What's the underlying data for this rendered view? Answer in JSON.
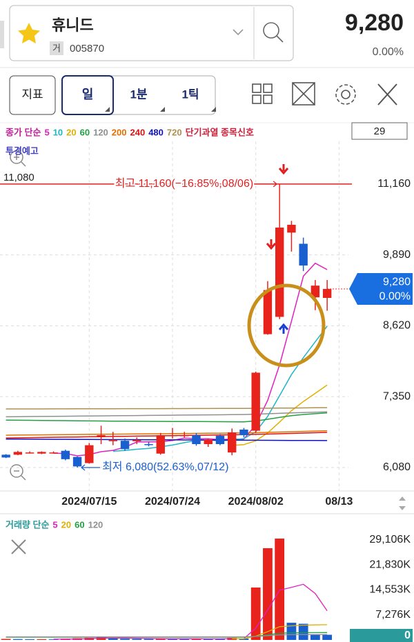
{
  "header": {
    "name": "휴니드",
    "market": "거",
    "code": "005870",
    "price": "9,280",
    "change": "0.00%"
  },
  "toolbar": {
    "buttons": [
      "지표",
      "일",
      "1분",
      "1틱"
    ],
    "count": "29"
  },
  "chart_data": [
    {
      "type": "candlestick",
      "legend_prefix": "종가 단순",
      "signals": [
        "단기과열 종목신호",
        "투경예고"
      ],
      "corner_label": "11,080",
      "categories": [
        null,
        null,
        null,
        null,
        null,
        null,
        null,
        "2024/07/15",
        null,
        null,
        null,
        null,
        null,
        null,
        "2024/07/24",
        null,
        null,
        null,
        null,
        null,
        null,
        "2024/08/02",
        null,
        null,
        null,
        null,
        null,
        null,
        "08/13"
      ],
      "open": [
        6310,
        6310,
        6350,
        6330,
        6350,
        6380,
        6270,
        6160,
        6650,
        6560,
        6560,
        6570,
        6500,
        6330,
        6660,
        6660,
        6660,
        6500,
        6650,
        6350,
        6760,
        6740,
        8470,
        8780,
        10290,
        10090,
        9130,
        9120,
        null
      ],
      "high": [
        6320,
        6380,
        6370,
        6370,
        6370,
        6400,
        6280,
        6520,
        6830,
        6720,
        6600,
        6620,
        6540,
        6700,
        6790,
        6720,
        6700,
        6600,
        6680,
        6780,
        6790,
        7800,
        9420,
        11160,
        10500,
        10200,
        9440,
        9440,
        null
      ],
      "low": [
        6250,
        6300,
        6330,
        6320,
        6330,
        6210,
        6080,
        6150,
        6500,
        6480,
        6380,
        6500,
        6460,
        6310,
        6600,
        6620,
        6470,
        6450,
        6480,
        6300,
        6620,
        6700,
        8460,
        8740,
        9950,
        9600,
        8900,
        8890,
        null
      ],
      "close": [
        6260,
        6360,
        6350,
        6360,
        6350,
        6230,
        6100,
        6480,
        6660,
        6570,
        6410,
        6570,
        6490,
        6660,
        6660,
        6660,
        6500,
        6580,
        6500,
        6710,
        6660,
        7780,
        9260,
        10380,
        10430,
        9700,
        9340,
        9280,
        null
      ],
      "up_color": "#e8231b",
      "down_color": "#1a5fd0",
      "series": [
        {
          "name": "5",
          "color": "#e020c0",
          "values": [
            null,
            null,
            null,
            null,
            6336,
            6332,
            6290,
            6314,
            6364,
            6388,
            6444,
            6538,
            6540,
            6540,
            6566,
            6608,
            6594,
            6596,
            6580,
            6590,
            6590,
            6846,
            7282,
            7920,
            8702,
            9510,
            9742,
            9626,
            null
          ]
        },
        {
          "name": "10",
          "color": "#1fb5c8",
          "values": [
            null,
            null,
            null,
            null,
            null,
            null,
            null,
            null,
            null,
            6372,
            6387,
            6408,
            6422,
            6452,
            6483,
            6526,
            6566,
            6576,
            6560,
            6574,
            6599,
            6720,
            6997,
            7369,
            7746,
            8050,
            8334,
            8612,
            null
          ]
        },
        {
          "name": "20",
          "color": "#e0b000",
          "values": [
            null,
            null,
            null,
            null,
            null,
            null,
            null,
            null,
            null,
            null,
            null,
            null,
            null,
            null,
            null,
            null,
            null,
            null,
            null,
            6475,
            6490,
            6560,
            6700,
            6895,
            7098,
            7264,
            7410,
            7558,
            null
          ]
        },
        {
          "name": "60",
          "color": "#20a040",
          "values": [
            6930,
            6928,
            6926,
            6924,
            6922,
            6920,
            6918,
            6916,
            6914,
            6912,
            6910,
            6909,
            6908,
            6907,
            6906,
            6905,
            6904,
            6903,
            6902,
            6901,
            6900,
            6915,
            6945,
            6980,
            7010,
            7030,
            7045,
            7060,
            null
          ]
        },
        {
          "name": "120",
          "color": "#909090",
          "values": [
            6990,
            6992,
            6994,
            6996,
            6998,
            7000,
            7002,
            7004,
            7006,
            7008,
            7010,
            7012,
            7014,
            7016,
            7018,
            7020,
            7022,
            7024,
            7026,
            7028,
            7030,
            7036,
            7044,
            7052,
            7060,
            7066,
            7072,
            7078,
            null
          ]
        },
        {
          "name": "200",
          "color": "#e07000",
          "values": [
            6660,
            6662,
            6664,
            6666,
            6668,
            6670,
            6672,
            6674,
            6676,
            6678,
            6680,
            6682,
            6684,
            6686,
            6688,
            6690,
            6692,
            6694,
            6696,
            6698,
            6700,
            6704,
            6710,
            6716,
            6722,
            6728,
            6734,
            6740,
            null
          ]
        },
        {
          "name": "240",
          "color": "#e01010",
          "values": [
            6610,
            6613,
            6616,
            6619,
            6622,
            6625,
            6628,
            6631,
            6634,
            6637,
            6640,
            6643,
            6646,
            6649,
            6652,
            6655,
            6658,
            6661,
            6664,
            6667,
            6670,
            6674,
            6680,
            6686,
            6692,
            6698,
            6704,
            6710,
            null
          ]
        },
        {
          "name": "480",
          "color": "#1010c0",
          "values": [
            6590,
            6589,
            6588,
            6587,
            6586,
            6585,
            6584,
            6583,
            6582,
            6581,
            6580,
            6579,
            6578,
            6577,
            6576,
            6575,
            6574,
            6573,
            6572,
            6571,
            6570,
            6569,
            6568,
            6567,
            6566,
            6565,
            6564,
            6563,
            null
          ]
        },
        {
          "name": "720",
          "color": "#b09050",
          "values": [
            7130,
            7130,
            7131,
            7131,
            7132,
            7132,
            7133,
            7133,
            7134,
            7134,
            7135,
            7135,
            7136,
            7136,
            7137,
            7137,
            7138,
            7138,
            7139,
            7139,
            7140,
            7141,
            7143,
            7145,
            7147,
            7149,
            7151,
            7153,
            null
          ]
        }
      ],
      "ylim": [
        5660,
        11925
      ],
      "yticks": [
        {
          "value": 6080,
          "label": "6,080"
        },
        {
          "value": 7350,
          "label": "7,350"
        },
        {
          "value": 8620,
          "label": "8,620"
        },
        {
          "value": 9890,
          "label": "9,890"
        },
        {
          "value": 11160,
          "label": "11,160"
        }
      ],
      "grid": true,
      "annotations": [
        {
          "text": "최고 11,160(−16.85%,08/06)",
          "value": 11160,
          "color": "#e02020"
        },
        {
          "text": "최저 6,080(52.63%,07/12)",
          "value": 6080,
          "color": "#1a5fd0"
        }
      ],
      "current": {
        "value": 9280,
        "label": "9,280",
        "change": "0.00%",
        "color": "#1a6fe0"
      }
    },
    {
      "type": "bar",
      "legend_prefix": "거래량 단순",
      "values": [
        300000,
        250000,
        200000,
        220000,
        180000,
        350000,
        500000,
        600000,
        800000,
        400000,
        350000,
        300000,
        280000,
        450000,
        350000,
        300000,
        350000,
        300000,
        280000,
        600000,
        400000,
        15250000,
        26700000,
        29500000,
        5000000,
        4700000,
        1700000,
        1500000,
        0
      ],
      "up_color": "#e8231b",
      "down_color": "#1a5fd0",
      "series": [
        {
          "name": "5",
          "color": "#e020c0",
          "values": [
            null,
            null,
            null,
            null,
            230000,
            240000,
            290000,
            374000,
            530000,
            530000,
            530000,
            490000,
            426000,
            356000,
            346000,
            336000,
            346000,
            330000,
            316000,
            376000,
            386000,
            3440000,
            8680000,
            14500000,
            15300000,
            16200000,
            13500000,
            8500000,
            null
          ]
        },
        {
          "name": "20",
          "color": "#e0b000",
          "values": [
            null,
            null,
            null,
            null,
            null,
            null,
            null,
            null,
            null,
            null,
            null,
            null,
            null,
            null,
            null,
            null,
            null,
            null,
            null,
            360000,
            370000,
            1100000,
            2400000,
            3860000,
            4090000,
            4300000,
            4370000,
            4430000,
            null
          ]
        },
        {
          "name": "60",
          "color": "#20a040",
          "values": [
            800000,
            800000,
            800000,
            800000,
            800000,
            800000,
            800000,
            800000,
            800000,
            800000,
            800000,
            800000,
            800000,
            800000,
            800000,
            800000,
            800000,
            800000,
            800000,
            800000,
            800000,
            1050000,
            1480000,
            1960000,
            2040000,
            2110000,
            2130000,
            2150000,
            null
          ]
        },
        {
          "name": "120",
          "color": "#909090",
          "values": [
            900000,
            900000,
            900000,
            900000,
            900000,
            900000,
            900000,
            900000,
            900000,
            900000,
            900000,
            900000,
            900000,
            900000,
            900000,
            900000,
            900000,
            900000,
            900000,
            900000,
            900000,
            1020000,
            1240000,
            1480000,
            1520000,
            1560000,
            1570000,
            1580000,
            null
          ]
        }
      ],
      "ylim": [
        0,
        33720000
      ],
      "yticks": [
        {
          "value": 7276000,
          "label": "7,276K"
        },
        {
          "value": 14553000,
          "label": "14,553K"
        },
        {
          "value": 21830000,
          "label": "21,830K"
        },
        {
          "value": 29106000,
          "label": "29,106K"
        }
      ],
      "current_color": "#2a9a9a"
    }
  ]
}
